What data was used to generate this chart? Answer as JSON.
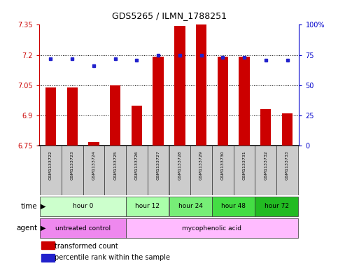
{
  "title": "GDS5265 / ILMN_1788251",
  "samples": [
    "GSM1133722",
    "GSM1133723",
    "GSM1133724",
    "GSM1133725",
    "GSM1133726",
    "GSM1133727",
    "GSM1133728",
    "GSM1133729",
    "GSM1133730",
    "GSM1133731",
    "GSM1133732",
    "GSM1133733"
  ],
  "red_values": [
    7.04,
    7.04,
    6.77,
    7.05,
    6.95,
    7.19,
    7.345,
    7.35,
    7.19,
    7.19,
    6.93,
    6.91
  ],
  "blue_values": [
    72,
    72,
    66,
    72,
    71,
    75,
    75,
    75,
    73,
    73,
    71,
    71
  ],
  "ylim_left": [
    6.75,
    7.35
  ],
  "ylim_right": [
    0,
    100
  ],
  "yticks_left": [
    6.75,
    6.9,
    7.05,
    7.2,
    7.35
  ],
  "yticks_right": [
    0,
    25,
    50,
    75,
    100
  ],
  "ytick_labels_left": [
    "6.75",
    "6.9",
    "7.05",
    "7.2",
    "7.35"
  ],
  "ytick_labels_right": [
    "0",
    "25",
    "50",
    "75",
    "100%"
  ],
  "hlines": [
    6.9,
    7.05,
    7.2
  ],
  "bar_color": "#cc0000",
  "dot_color": "#2222cc",
  "bar_width": 0.5,
  "base_value": 6.75,
  "time_groups": [
    {
      "label": "hour 0",
      "samples": [
        0,
        1,
        2,
        3
      ],
      "color": "#ccffcc"
    },
    {
      "label": "hour 12",
      "samples": [
        4,
        5
      ],
      "color": "#aaffaa"
    },
    {
      "label": "hour 24",
      "samples": [
        6,
        7
      ],
      "color": "#77ee77"
    },
    {
      "label": "hour 48",
      "samples": [
        8,
        9
      ],
      "color": "#44dd44"
    },
    {
      "label": "hour 72",
      "samples": [
        10,
        11
      ],
      "color": "#22bb22"
    }
  ],
  "agent_groups": [
    {
      "label": "untreated control",
      "samples": [
        0,
        1,
        2,
        3
      ],
      "color": "#ee88ee"
    },
    {
      "label": "mycophenolic acid",
      "samples": [
        4,
        5,
        6,
        7,
        8,
        9,
        10,
        11
      ],
      "color": "#ffbbff"
    }
  ],
  "legend_red_label": "transformed count",
  "legend_blue_label": "percentile rank within the sample",
  "bg_color": "#ffffff",
  "axis_label_color_left": "#cc0000",
  "axis_label_color_right": "#0000cc",
  "sample_box_color": "#cccccc",
  "border_color": "#333333"
}
